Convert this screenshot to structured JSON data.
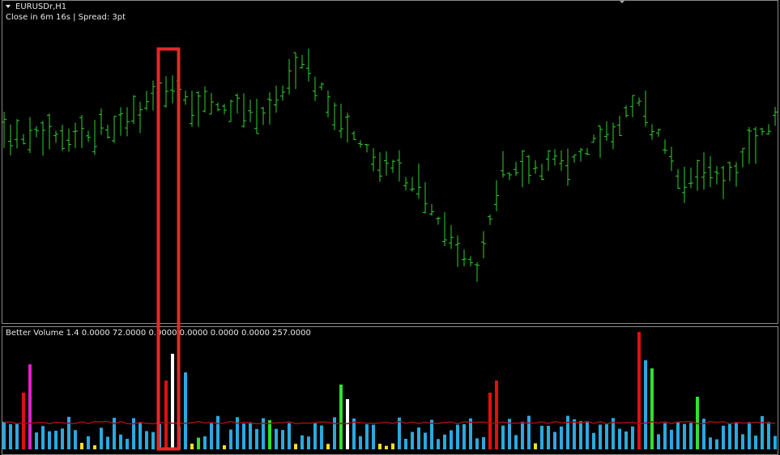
{
  "header": {
    "symbol": "EURUSDr,H1",
    "status": "Close in 6m 16s | Spread: 3pt"
  },
  "indicator": {
    "label": "Better Volume 1.4 0.0000 72.0000 0.0000 0.0000 0.0000 0.0000 257.0000"
  }
}
